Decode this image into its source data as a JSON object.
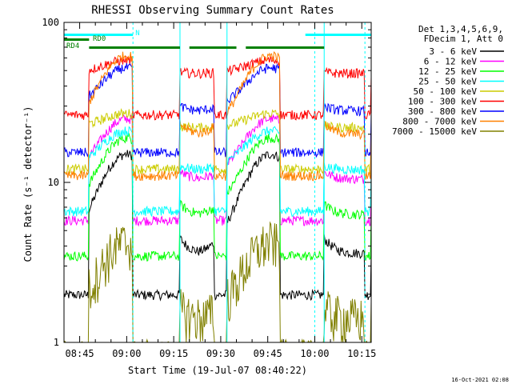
{
  "chart_data": {
    "type": "line",
    "title": "RHESSI Observing Summary Count Rates",
    "xlabel": "Start Time (19-Jul-07 08:40:22)",
    "ylabel": "Count Rate (s⁻¹ detector⁻¹)",
    "x_start": "08:40:22",
    "x_range_min": [
      0,
      98
    ],
    "x_ticks": [
      {
        "min": 5,
        "label": "08:45"
      },
      {
        "min": 20,
        "label": "09:00"
      },
      {
        "min": 35,
        "label": "09:15"
      },
      {
        "min": 50,
        "label": "09:30"
      },
      {
        "min": 65,
        "label": "09:45"
      },
      {
        "min": 80,
        "label": "10:00"
      },
      {
        "min": 95,
        "label": "10:15"
      }
    ],
    "y_scale": "log",
    "ylim": [
      1,
      100
    ],
    "y_ticks": [
      {
        "value": 1,
        "label": "1"
      },
      {
        "value": 10,
        "label": "10"
      },
      {
        "value": 100,
        "label": "100"
      }
    ],
    "legend": {
      "position": "top-right",
      "header": [
        "Det 1,3,4,5,6,9,",
        "FDecim 1, Att 0"
      ]
    },
    "series": [
      {
        "name": "3 - 6 keV",
        "color": "#000000",
        "day": 3.6,
        "peak": 15
      },
      {
        "name": "6 - 12 keV",
        "color": "#ff00ff",
        "day": 10.5,
        "peak": 25
      },
      {
        "name": "12 - 25 keV",
        "color": "#00ff00",
        "day": 6.3,
        "peak": 19
      },
      {
        "name": "25 - 50 keV",
        "color": "#00ffff",
        "day": 12,
        "peak": 21
      },
      {
        "name": "50 - 100 keV",
        "color": "#cccc00",
        "day": 22,
        "peak": 27
      },
      {
        "name": "100 - 300 keV",
        "color": "#ff0000",
        "day": 48,
        "peak": 58
      },
      {
        "name": "300 - 800 keV",
        "color": "#0000ff",
        "day": 28,
        "peak": 52
      },
      {
        "name": "800 - 7000 keV",
        "color": "#ff8000",
        "day": 20,
        "peak": 62
      },
      {
        "name": "7000 - 15000 keV",
        "color": "#808000",
        "day": 1.4,
        "peak": 4.2
      }
    ],
    "peaks_min": [
      20,
      66
    ],
    "night_intervals_min": [
      [
        0,
        8
      ],
      [
        22,
        37
      ],
      [
        48,
        52
      ],
      [
        69,
        83
      ],
      [
        96,
        98
      ]
    ],
    "flags": [
      {
        "label": "N",
        "color": "#00ffff",
        "intervals": [
          [
            0,
            22
          ],
          [
            77,
            98
          ]
        ]
      },
      {
        "label": "RD0",
        "color": "#008000",
        "intervals": [
          [
            0,
            8
          ]
        ]
      },
      {
        "label": "RD4",
        "color": "#008000",
        "intervals": [
          [
            8,
            37
          ],
          [
            40,
            55
          ],
          [
            58,
            83
          ]
        ]
      }
    ],
    "saa_lines_min": [
      22,
      80,
      96
    ],
    "transitions_min": [
      0,
      37,
      52,
      83
    ]
  },
  "footer_date": "16-Oct-2021 02:08"
}
